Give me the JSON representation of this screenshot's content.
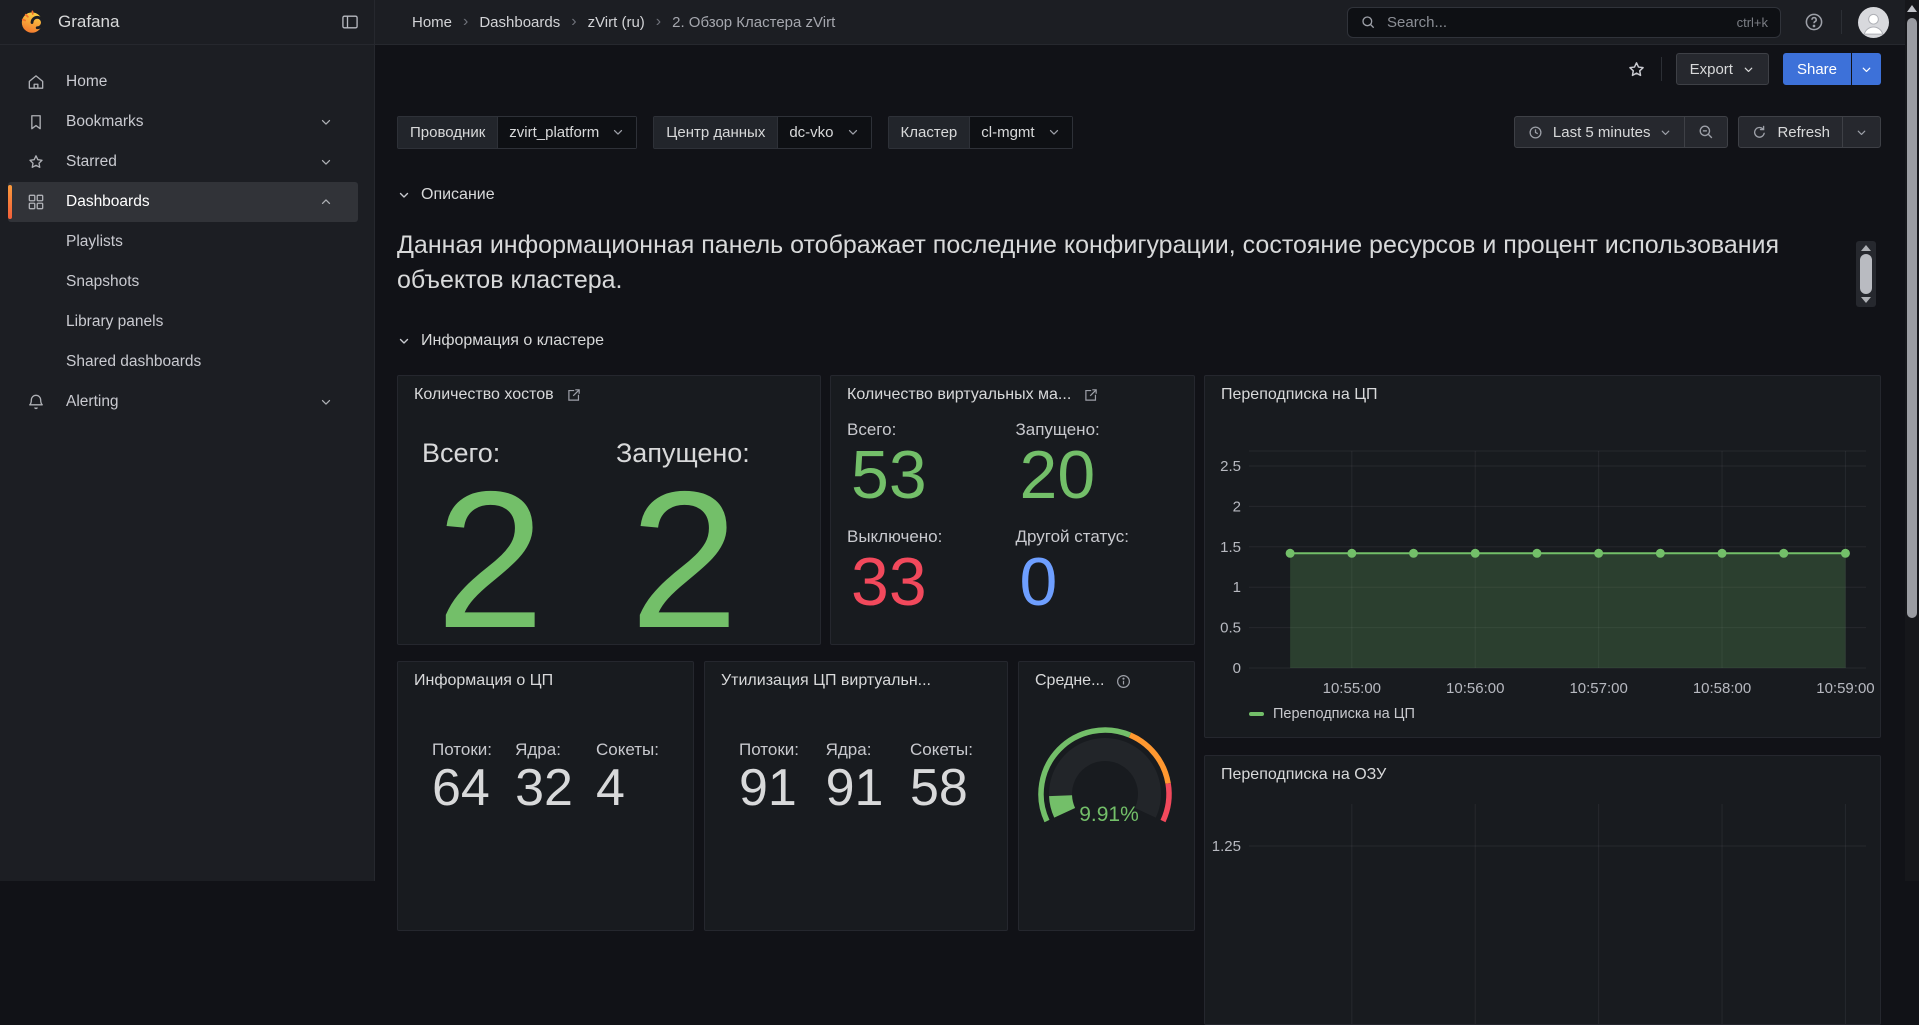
{
  "topbar": {
    "brand": "Grafana",
    "breadcrumbs": [
      "Home",
      "Dashboards",
      "zVirt (ru)",
      "2. Обзор Кластера zVirt"
    ],
    "search": {
      "placeholder": "Search...",
      "shortcut": "ctrl+k"
    }
  },
  "sidebar": {
    "items": [
      {
        "label": "Home",
        "icon": "home-icon"
      },
      {
        "label": "Bookmarks",
        "icon": "bookmark-icon",
        "chevron": "down"
      },
      {
        "label": "Starred",
        "icon": "star-icon",
        "chevron": "down"
      },
      {
        "label": "Dashboards",
        "icon": "apps-icon",
        "chevron": "up",
        "active": true
      },
      {
        "label": "Playlists",
        "indent": true
      },
      {
        "label": "Snapshots",
        "indent": true
      },
      {
        "label": "Library panels",
        "indent": true
      },
      {
        "label": "Shared dashboards",
        "indent": true
      },
      {
        "label": "Alerting",
        "icon": "bell-icon",
        "chevron": "down"
      }
    ]
  },
  "toolbar": {
    "export_label": "Export",
    "share_label": "Share"
  },
  "filters": [
    {
      "label": "Проводник",
      "value": "zvirt_platform"
    },
    {
      "label": "Центр данных",
      "value": "dc-vko"
    },
    {
      "label": "Кластер",
      "value": "cl-mgmt"
    }
  ],
  "timebar": {
    "range_label": "Last 5 minutes",
    "refresh_label": "Refresh"
  },
  "sections": {
    "description": {
      "title": "Описание",
      "text": "Данная информационная панель отображает последние конфигурации, состояние ресурсов и процент использования объектов кластера."
    },
    "cluster_info": {
      "title": "Информация о кластере"
    }
  },
  "panels": {
    "hosts": {
      "title": "Количество хостов",
      "stats": [
        {
          "label": "Всего:",
          "value": "2",
          "color": "#73bf69"
        },
        {
          "label": "Запущено:",
          "value": "2",
          "color": "#73bf69"
        }
      ]
    },
    "vms": {
      "title": "Количество виртуальных ма...",
      "stats": [
        {
          "label": "Всего:",
          "value": "53",
          "color": "#73bf69"
        },
        {
          "label": "Запущено:",
          "value": "20",
          "color": "#73bf69"
        },
        {
          "label": "Выключено:",
          "value": "33",
          "color": "#f2495c"
        },
        {
          "label": "Другой статус:",
          "value": "0",
          "color": "#6e9fff"
        }
      ]
    },
    "cpu_info": {
      "title": "Информация о ЦП",
      "stats": [
        {
          "label": "Потоки:",
          "value": "64",
          "color": "#d8d9da"
        },
        {
          "label": "Ядра:",
          "value": "32",
          "color": "#d8d9da"
        },
        {
          "label": "Сокеты:",
          "value": "4",
          "color": "#d8d9da"
        }
      ]
    },
    "cpu_util": {
      "title": "Утилизация ЦП виртуальн...",
      "stats": [
        {
          "label": "Потоки:",
          "value": "91",
          "color": "#d8d9da"
        },
        {
          "label": "Ядра:",
          "value": "91",
          "color": "#d8d9da"
        },
        {
          "label": "Сокеты:",
          "value": "58",
          "color": "#d8d9da"
        }
      ]
    },
    "gauge": {
      "title": "Средне...",
      "value": "9.91%",
      "percent": 9.91,
      "thresholds": [
        {
          "color": "#73bf69",
          "upto": 60
        },
        {
          "color": "#ff9830",
          "upto": 85
        },
        {
          "color": "#f2495c",
          "upto": 100
        }
      ]
    }
  },
  "chart_data": [
    {
      "type": "line",
      "title": "Переподписка на ЦП",
      "x": [
        "10:54:30",
        "10:55:00",
        "10:55:30",
        "10:56:00",
        "10:56:30",
        "10:57:00",
        "10:57:30",
        "10:58:00",
        "10:58:30",
        "10:59:00"
      ],
      "series": [
        {
          "name": "Переподписка на ЦП",
          "color": "#73bf69",
          "values": [
            1.42,
            1.42,
            1.42,
            1.42,
            1.42,
            1.42,
            1.42,
            1.42,
            1.42,
            1.42
          ]
        }
      ],
      "xlabel": "",
      "ylabel": "",
      "ylim": [
        0,
        2.5
      ],
      "yticks": [
        0,
        0.5,
        1,
        1.5,
        2,
        2.5
      ],
      "xticks": [
        "10:55:00",
        "10:56:00",
        "10:57:00",
        "10:58:00",
        "10:59:00"
      ],
      "grid": true,
      "fill": true,
      "legend_position": "bottom",
      "time_window_seconds": 300
    },
    {
      "type": "line",
      "title": "Переподписка на ОЗУ",
      "series": [],
      "yticks": [
        1.25
      ],
      "grid": true,
      "note_visible_portion": "panel clipped by viewport bottom; only grid and 1.25 tick visible"
    }
  ]
}
